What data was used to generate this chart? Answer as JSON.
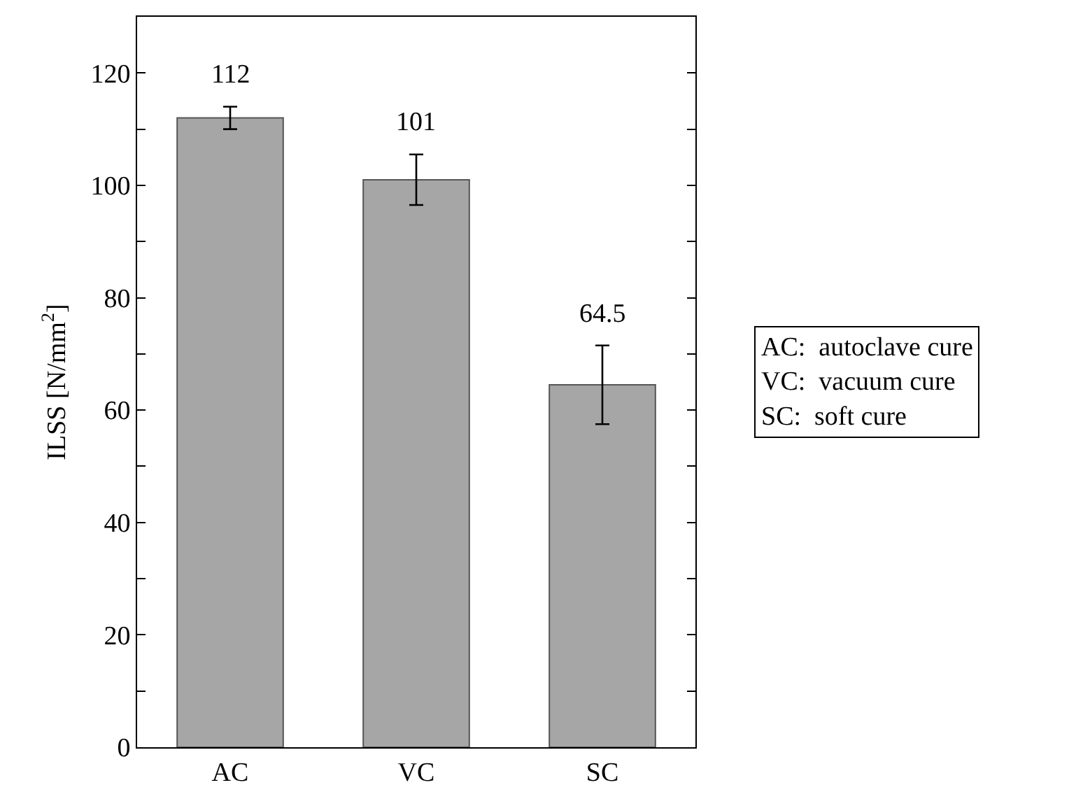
{
  "chart_data": {
    "type": "bar",
    "categories": [
      "AC",
      "VC",
      "SC"
    ],
    "values": [
      112,
      101,
      64.5
    ],
    "errors": [
      2,
      4.5,
      7
    ],
    "color": "#a6a6a6",
    "data_labels": true,
    "ylabel": "ILSS [N/mm$^{2}$]",
    "ylim": [
      0,
      130
    ],
    "yticks": [
      0,
      {
        "value": 10,
        "label": null
      },
      20,
      {
        "value": 30,
        "label": null
      },
      40,
      {
        "value": 50,
        "label": null
      },
      60,
      {
        "value": 70,
        "label": null
      },
      80,
      {
        "value": 90,
        "label": null
      },
      100,
      {
        "value": 110,
        "label": null
      },
      120,
      {
        "value": 130,
        "label": null
      }
    ],
    "grid": false,
    "legend": false,
    "annotations": [
      "AC:  autoclave cure",
      "VC:  vacuum cure",
      "SC:  soft cure"
    ]
  }
}
